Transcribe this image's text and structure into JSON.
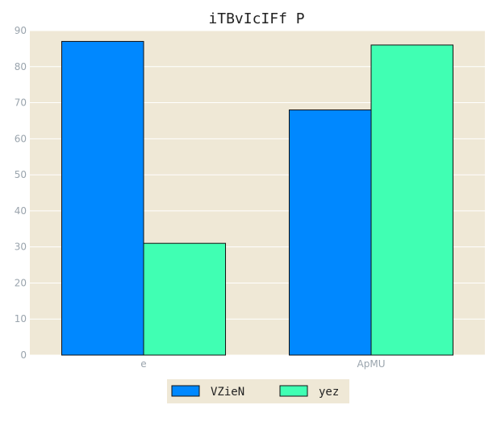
{
  "chart_data": {
    "type": "bar",
    "title": "iTBvIcIFf P",
    "xlabel": "",
    "ylabel": "",
    "categories": [
      "e",
      "ApMU"
    ],
    "series": [
      {
        "name": "VZieN",
        "values": [
          87,
          68
        ],
        "color": "#0088ff"
      },
      {
        "name": "yez",
        "values": [
          31,
          86
        ],
        "color": "#40ffb3"
      }
    ],
    "ylim": [
      0,
      90
    ],
    "yticks": [
      0,
      10,
      20,
      30,
      40,
      50,
      60,
      70,
      80,
      90
    ],
    "grid": true,
    "legend": "bottom-center",
    "background": "#efe8d6"
  }
}
